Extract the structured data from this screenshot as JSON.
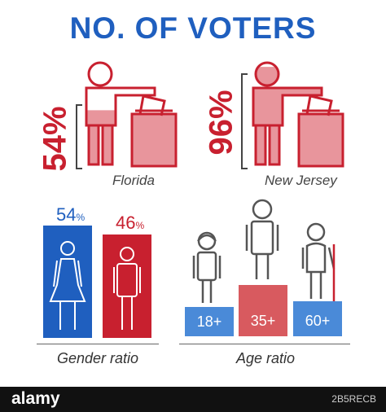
{
  "title": "NO. OF VOTERS",
  "colors": {
    "blue": "#1f5fbf",
    "red": "#c8202f",
    "light_red": "#e8959c",
    "age_blue": "#4a8ad8",
    "age_red": "#d85a5f",
    "gray": "#444444"
  },
  "chart_data": [
    {
      "type": "bar",
      "categories": [
        "Florida",
        "New Jersey"
      ],
      "values": [
        54,
        96
      ],
      "unit": "%",
      "value_labels": [
        "54%",
        "96%"
      ],
      "ylim": [
        0,
        100
      ]
    },
    {
      "type": "bar",
      "categories": [
        "female",
        "male"
      ],
      "values": [
        54,
        46
      ],
      "value_labels": [
        "54",
        "46"
      ],
      "unit": "%",
      "xlabel": "Gender ratio"
    },
    {
      "type": "bar",
      "categories": [
        "18+",
        "35+",
        "60+"
      ],
      "xlabel": "Age ratio"
    }
  ],
  "labels": {
    "florida": "Florida",
    "new_jersey": "New Jersey",
    "florida_pct": "54%",
    "nj_pct": "96%",
    "gender_female_pct": "54",
    "gender_male_pct": "46",
    "pct_sign": "%",
    "gender_ratio": "Gender ratio",
    "age_ratio": "Age ratio",
    "age_18": "18+",
    "age_35": "35+",
    "age_60": "60+"
  },
  "footer": {
    "logo": "alamy",
    "image_id": "2B5RECB"
  }
}
